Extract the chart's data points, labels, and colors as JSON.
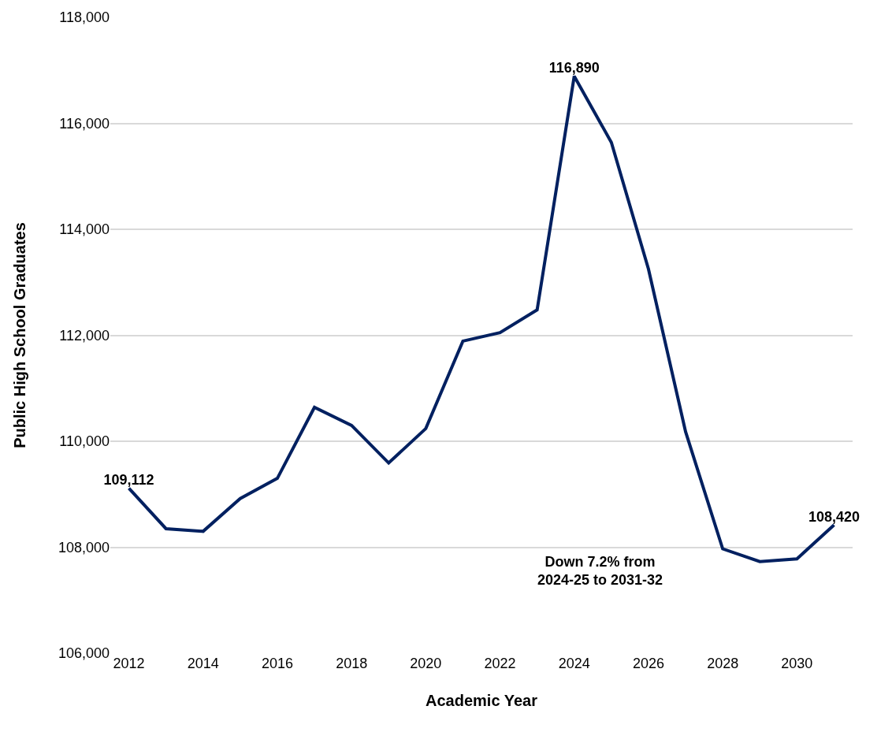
{
  "chart_data": {
    "type": "line",
    "xlabel": "Academic Year",
    "ylabel": "Public High School Graduates",
    "x": [
      2012,
      2013,
      2014,
      2015,
      2016,
      2017,
      2018,
      2019,
      2020,
      2021,
      2022,
      2023,
      2024,
      2025,
      2026,
      2027,
      2028,
      2029,
      2030,
      2031
    ],
    "series": [
      {
        "color": "#002060",
        "values": [
          109112,
          108350,
          108300,
          108920,
          109300,
          110640,
          110300,
          109590,
          110240,
          111890,
          112050,
          112480,
          116890,
          115640,
          113250,
          110180,
          107970,
          107730,
          107780,
          108420
        ],
        "value_labels": [
          "109,112",
          null,
          null,
          null,
          null,
          null,
          null,
          null,
          null,
          null,
          null,
          null,
          "116,890",
          null,
          null,
          null,
          null,
          null,
          null,
          "108,420"
        ]
      }
    ],
    "xlim": [
      2011.5,
      2031.5
    ],
    "xticks": [
      2012,
      2014,
      2016,
      2018,
      2020,
      2022,
      2024,
      2026,
      2028,
      2030
    ],
    "ylim": [
      106000,
      118000
    ],
    "yticks": [
      {
        "value": 106000,
        "label": "106,000"
      },
      {
        "value": 108000,
        "label": "108,000"
      },
      {
        "value": 110000,
        "label": "110,000"
      },
      {
        "value": 112000,
        "label": "112,000"
      },
      {
        "value": 114000,
        "label": "114,000"
      },
      {
        "value": 116000,
        "label": "116,000"
      },
      {
        "value": 118000,
        "label": "118,000"
      }
    ],
    "grid": "y",
    "marker": "none",
    "line_style": "solid",
    "annotations": [
      "Down 7.2% from\n2024-25 to 2031-32"
    ]
  }
}
